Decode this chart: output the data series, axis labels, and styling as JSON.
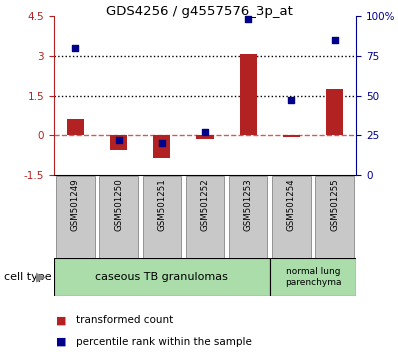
{
  "title": "GDS4256 / g4557576_3p_at",
  "samples": [
    "GSM501249",
    "GSM501250",
    "GSM501251",
    "GSM501252",
    "GSM501253",
    "GSM501254",
    "GSM501255"
  ],
  "transformed_count": [
    0.6,
    -0.55,
    -0.85,
    -0.15,
    3.05,
    -0.05,
    1.75
  ],
  "percentile_rank": [
    80,
    22,
    20,
    27,
    98,
    47,
    85
  ],
  "ylim_left": [
    -1.5,
    4.5
  ],
  "ylim_right": [
    0,
    100
  ],
  "bar_color": "#b22222",
  "dot_color": "#00008b",
  "zero_line_color": "#cd5c5c",
  "hline_color": "black",
  "xtick_bg": "#c8c8c8",
  "group1_label": "caseous TB granulomas",
  "group2_label": "normal lung\nparenchyma",
  "group1_color": "#aaddaa",
  "group2_color": "#aaddaa",
  "cell_type_label": "cell type",
  "legend1": "transformed count",
  "legend2": "percentile rank within the sample",
  "right_yticks": [
    0,
    25,
    50,
    75,
    100
  ],
  "right_yticklabels": [
    "0",
    "25",
    "50",
    "75",
    "100%"
  ],
  "left_yticks": [
    -1.5,
    0,
    1.5,
    3.0,
    4.5
  ],
  "left_yticklabels": [
    "-1.5",
    "0",
    "1.5",
    "3",
    "4.5"
  ]
}
